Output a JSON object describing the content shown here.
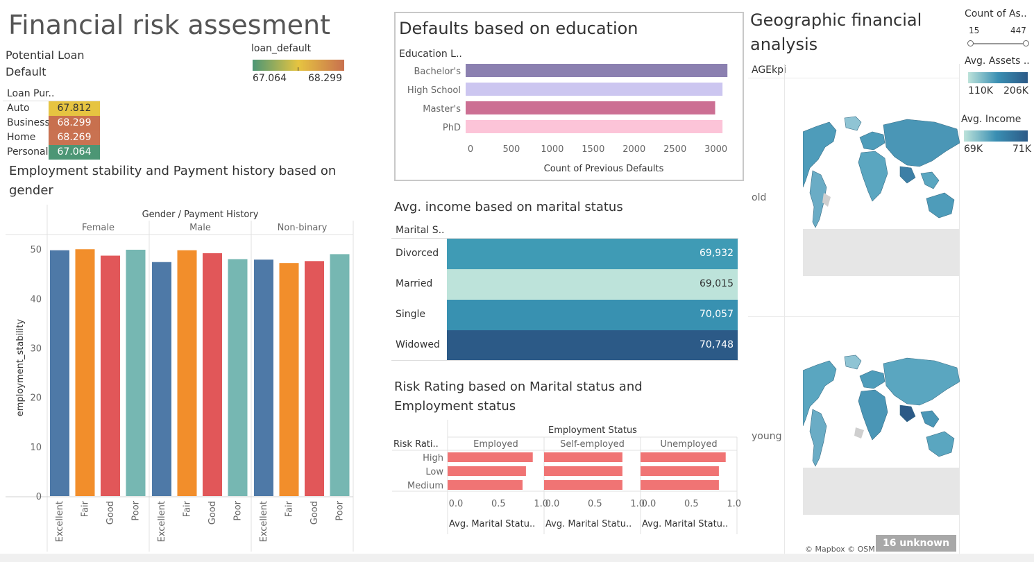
{
  "dashboard": {
    "title": "Financial risk assesment"
  },
  "loan_panel": {
    "title": "Potential Loan\nDefault",
    "column_header": "Loan Pur..",
    "legend_title": "loan_default",
    "legend_min": "67.064",
    "legend_max": "68.299",
    "rows": [
      {
        "category": "Auto",
        "value": "67.812",
        "color": "#e6c441"
      },
      {
        "category": "Business",
        "value": "68.299",
        "color": "#c8704e"
      },
      {
        "category": "Home",
        "value": "68.269",
        "color": "#c97251"
      },
      {
        "category": "Personal",
        "value": "67.064",
        "color": "#4c9675"
      }
    ]
  },
  "employment_chart": {
    "title": "Employment stability and Payment history based on gender",
    "header": "Gender / Payment History"
  },
  "education_chart": {
    "title": "Defaults based on education",
    "axis_header": "Education L.."
  },
  "marital_income": {
    "title": "Avg. income based on marital status",
    "column_header": "Marital S..",
    "rows": [
      {
        "label": "Divorced",
        "value": "69,932",
        "color": "#3f9bb5",
        "text_color": "#ffffff"
      },
      {
        "label": "Married",
        "value": "69,015",
        "color": "#bde3da",
        "text_color": "#333333"
      },
      {
        "label": "Single",
        "value": "70,057",
        "color": "#3891b1",
        "text_color": "#ffffff"
      },
      {
        "label": "Widowed",
        "value": "70,748",
        "color": "#2c5a87",
        "text_color": "#ffffff"
      }
    ]
  },
  "risk_chart": {
    "title": "Risk Rating based on Marital status and Employment status",
    "header": "Employment Status",
    "row_header": "Risk Rati.."
  },
  "geo": {
    "title": "Geographic financial analysis",
    "row_header": "AGEkpi",
    "rows": [
      "old",
      "young"
    ],
    "attribution": "© Mapbox © OSM",
    "unknown_badge": "16 unknown",
    "legends": {
      "count_title": "Count of As..",
      "count_min": "15",
      "count_max": "447",
      "assets_title": "Avg. Assets ..",
      "assets_min": "110K",
      "assets_max": "206K",
      "income_title": "Avg. Income",
      "income_min": "69K",
      "income_max": "71K"
    }
  },
  "chart_data": [
    {
      "type": "bar",
      "name": "employment_stability",
      "title": "Employment stability and Payment history based on gender",
      "ylabel": "employment_stability",
      "xlabel": "",
      "ylim": [
        0,
        52
      ],
      "yticks": [
        0,
        10,
        20,
        30,
        40,
        50
      ],
      "facet_header": "Gender / Payment History",
      "facets": [
        "Female",
        "Male",
        "Non-binary"
      ],
      "categories": [
        "Excellent",
        "Fair",
        "Good",
        "Poor"
      ],
      "colors": [
        "#4e79a7",
        "#f28e2b",
        "#e15759",
        "#76b7b2"
      ],
      "values": [
        [
          49.8,
          50.0,
          48.7,
          49.9
        ],
        [
          47.4,
          49.8,
          49.2,
          48.0
        ],
        [
          47.9,
          47.2,
          47.6,
          49.0
        ]
      ]
    },
    {
      "type": "bar",
      "orientation": "horizontal",
      "name": "defaults_by_education",
      "title": "Defaults based on education",
      "categories": [
        "Bachelor's",
        "High School",
        "Master's",
        "PhD"
      ],
      "values": [
        3200,
        3140,
        3050,
        3140
      ],
      "colors": [
        "#8b80b0",
        "#ccc6f0",
        "#cc6f93",
        "#fcc4d8"
      ],
      "xlabel": "Count of Previous Defaults",
      "xlim": [
        0,
        3300
      ],
      "xticks": [
        0,
        500,
        1000,
        1500,
        2000,
        2500,
        3000
      ]
    },
    {
      "type": "table",
      "name": "avg_income_by_marital_status",
      "title": "Avg. income based on marital status",
      "categories": [
        "Divorced",
        "Married",
        "Single",
        "Widowed"
      ],
      "values": [
        69932,
        69015,
        70057,
        70748
      ]
    },
    {
      "type": "bar",
      "orientation": "horizontal",
      "name": "risk_rating",
      "title": "Risk Rating based on Marital status and Employment status",
      "facet_header": "Employment Status",
      "facets": [
        "Employed",
        "Self-employed",
        "Unemployed"
      ],
      "categories": [
        "High",
        "Low",
        "Medium"
      ],
      "values": [
        [
          1.0,
          0.92,
          0.88
        ],
        [
          0.92,
          0.92,
          0.92
        ],
        [
          1.0,
          0.92,
          0.92
        ]
      ],
      "color": "#f07474",
      "xlabel": "Avg. Marital Statu..",
      "xlim": [
        0,
        1.1
      ],
      "xticks": [
        "0.0",
        "0.5",
        "1.0"
      ]
    }
  ]
}
